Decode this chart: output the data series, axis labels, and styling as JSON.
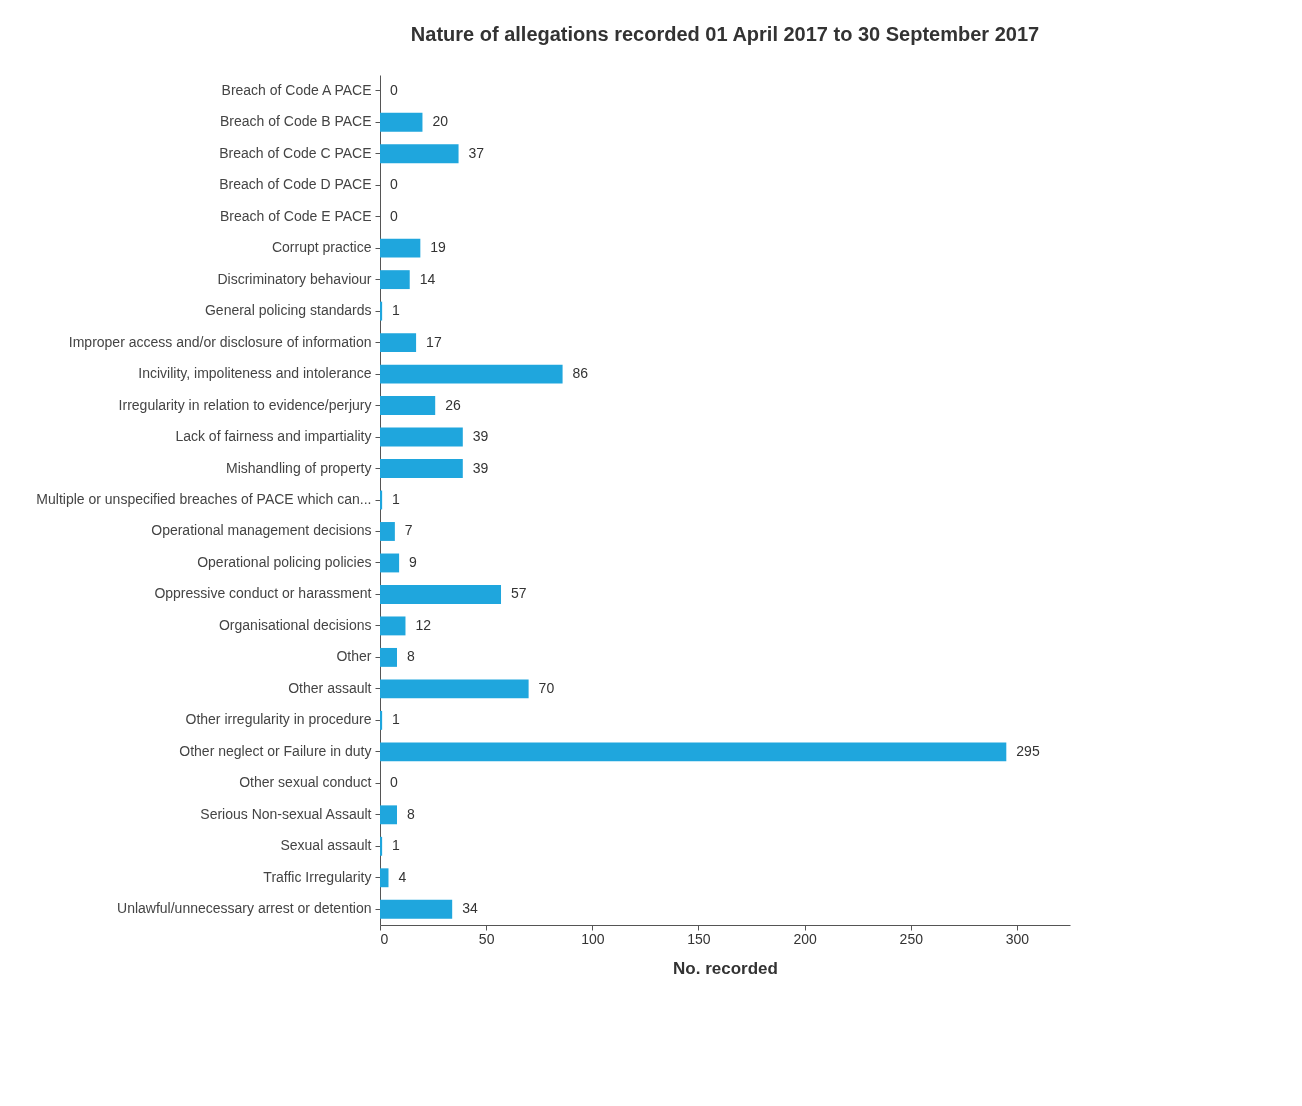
{
  "chart_data": {
    "type": "bar",
    "orientation": "horizontal",
    "title": "Nature of allegations recorded 01 April 2017 to 30 September 2017",
    "xlabel": "No. recorded",
    "categories": [
      "Breach of Code A PACE",
      "Breach of Code B PACE",
      "Breach of Code C PACE",
      "Breach of Code D PACE",
      "Breach of Code E PACE",
      "Corrupt practice",
      "Discriminatory behaviour",
      "General policing standards",
      "Improper access and/or disclosure of information",
      "Incivility, impoliteness and intolerance",
      "Irregularity in relation to evidence/perjury",
      "Lack of fairness and impartiality",
      "Mishandling of property",
      "Multiple or unspecified breaches of PACE which can...",
      "Operational management decisions",
      "Operational policing policies",
      "Oppressive conduct or harassment",
      "Organisational decisions",
      "Other",
      "Other assault",
      "Other irregularity in procedure",
      "Other neglect or Failure in duty",
      "Other sexual conduct",
      "Serious Non-sexual Assault",
      "Sexual assault",
      "Traffic Irregularity",
      "Unlawful/unnecessary arrest or detention"
    ],
    "values": [
      0,
      20,
      37,
      0,
      0,
      19,
      14,
      1,
      17,
      86,
      26,
      39,
      39,
      1,
      7,
      9,
      57,
      12,
      8,
      70,
      1,
      295,
      0,
      8,
      1,
      4,
      34
    ],
    "color": "#1fa6dd",
    "xlim": [
      0,
      325
    ],
    "xticks": [
      0,
      50,
      100,
      150,
      200,
      250,
      300
    ],
    "data_labels": true
  }
}
